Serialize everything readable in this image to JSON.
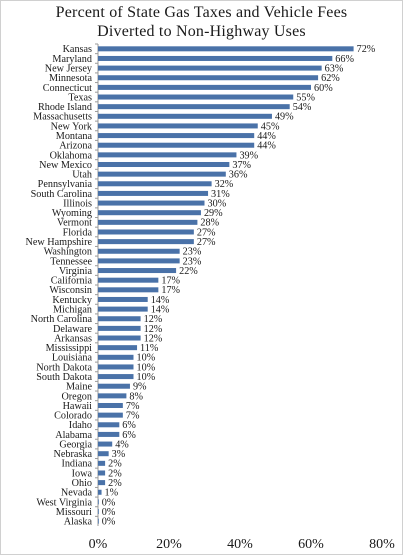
{
  "chart_data": {
    "type": "bar",
    "orientation": "horizontal",
    "title": "Percent of State Gas Taxes and Vehicle Fees Diverted to Non-Highway Uses",
    "title_line1": "Percent of State Gas Taxes and Vehicle  Fees",
    "title_line2": "Diverted  to Non-Highway  Uses",
    "bar_color": "#4a72a8",
    "xlim": [
      0,
      80
    ],
    "x_ticks": [
      0,
      20,
      40,
      60,
      80
    ],
    "x_tick_labels": [
      "0%",
      "20%",
      "40%",
      "60%",
      "80%"
    ],
    "grid": false,
    "categories": [
      "Kansas",
      "Maryland",
      "New Jersey",
      "Minnesota",
      "Connecticut",
      "Texas",
      "Rhode Island",
      "Massachusetts",
      "New York",
      "Montana",
      "Arizona",
      "Oklahoma",
      "New Mexico",
      "Utah",
      "Pennsylvania",
      "South Carolina",
      "Illinois",
      "Wyoming",
      "Vermont",
      "Florida",
      "New Hampshire",
      "Washington",
      "Tennessee",
      "Virginia",
      "California",
      "Wisconsin",
      "Kentucky",
      "Michigan",
      "North Carolina",
      "Delaware",
      "Arkansas",
      "Mississippi",
      "Louisiana",
      "North Dakota",
      "South Dakota",
      "Maine",
      "Oregon",
      "Hawaii",
      "Colorado",
      "Idaho",
      "Alabama",
      "Georgia",
      "Nebraska",
      "Indiana",
      "Iowa",
      "Ohio",
      "Nevada",
      "West Virginia",
      "Missouri",
      "Alaska"
    ],
    "values": [
      72,
      66,
      63,
      62,
      60,
      55,
      54,
      49,
      45,
      44,
      44,
      39,
      37,
      36,
      32,
      31,
      30,
      29,
      28,
      27,
      27,
      23,
      23,
      22,
      17,
      17,
      14,
      14,
      12,
      12,
      12,
      11,
      10,
      10,
      10,
      9,
      8,
      7,
      7,
      6,
      6,
      4,
      3,
      2,
      2,
      2,
      1,
      0,
      0,
      0
    ],
    "value_labels": [
      "72%",
      "66%",
      "63%",
      "62%",
      "60%",
      "55%",
      "54%",
      "49%",
      "45%",
      "44%",
      "44%",
      "39%",
      "37%",
      "36%",
      "32%",
      "31%",
      "30%",
      "29%",
      "28%",
      "27%",
      "27%",
      "23%",
      "23%",
      "22%",
      "17%",
      "17%",
      "14%",
      "14%",
      "12%",
      "12%",
      "12%",
      "11%",
      "10%",
      "10%",
      "10%",
      "9%",
      "8%",
      "7%",
      "7%",
      "6%",
      "6%",
      "4%",
      "3%",
      "2%",
      "2%",
      "2%",
      "1%",
      "0%",
      "0%",
      "0%"
    ]
  }
}
